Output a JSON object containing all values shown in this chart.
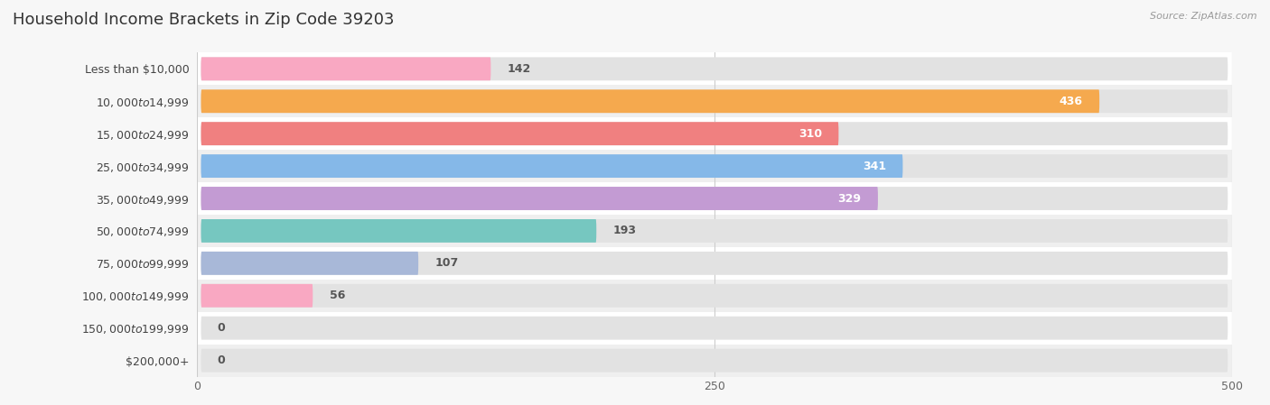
{
  "title": "Household Income Brackets in Zip Code 39203",
  "source": "Source: ZipAtlas.com",
  "categories": [
    "Less than $10,000",
    "$10,000 to $14,999",
    "$15,000 to $24,999",
    "$25,000 to $34,999",
    "$35,000 to $49,999",
    "$50,000 to $74,999",
    "$75,000 to $99,999",
    "$100,000 to $149,999",
    "$150,000 to $199,999",
    "$200,000+"
  ],
  "values": [
    142,
    436,
    310,
    341,
    329,
    193,
    107,
    56,
    0,
    0
  ],
  "colors": [
    "#F9A8C2",
    "#F5A94E",
    "#F08080",
    "#85B8E8",
    "#C39BD3",
    "#76C7C0",
    "#A8B8D8",
    "#F9A8C2",
    "#F5D6A0",
    "#F0B8B0"
  ],
  "xlim": [
    0,
    500
  ],
  "xticks": [
    0,
    250,
    500
  ],
  "bg_color": "#f7f7f7",
  "row_colors": [
    "#ffffff",
    "#efefef"
  ],
  "bar_bg_color": "#e2e2e2",
  "title_fontsize": 13,
  "label_fontsize": 9,
  "value_fontsize": 9
}
